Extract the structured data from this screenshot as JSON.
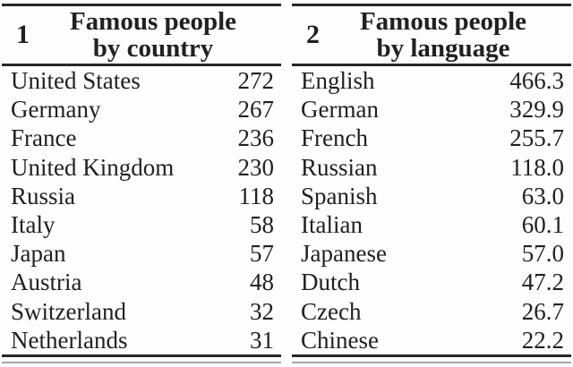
{
  "colors": {
    "text": "#231f20",
    "rule": "#2a2627",
    "faint_bottom_rule": "#a8a8a8",
    "background": "#fdfdfd"
  },
  "tables": [
    {
      "number": "1",
      "title_line1": "Famous people",
      "title_line2": "by country",
      "rows": [
        {
          "label": "United States",
          "value": "272"
        },
        {
          "label": "Germany",
          "value": "267"
        },
        {
          "label": "France",
          "value": "236"
        },
        {
          "label": "United Kingdom",
          "value": "230"
        },
        {
          "label": "Russia",
          "value": "118"
        },
        {
          "label": "Italy",
          "value": "58"
        },
        {
          "label": "Japan",
          "value": "57"
        },
        {
          "label": "Austria",
          "value": "48"
        },
        {
          "label": "Switzerland",
          "value": "32"
        },
        {
          "label": "Netherlands",
          "value": "31"
        }
      ]
    },
    {
      "number": "2",
      "title_line1": "Famous people",
      "title_line2": "by language",
      "rows": [
        {
          "label": "English",
          "value": "466.3"
        },
        {
          "label": "German",
          "value": "329.9"
        },
        {
          "label": "French",
          "value": "255.7"
        },
        {
          "label": "Russian",
          "value": "118.0"
        },
        {
          "label": "Spanish",
          "value": "63.0"
        },
        {
          "label": "Italian",
          "value": "60.1"
        },
        {
          "label": "Japanese",
          "value": "57.0"
        },
        {
          "label": "Dutch",
          "value": "47.2"
        },
        {
          "label": "Czech",
          "value": "26.7"
        },
        {
          "label": "Chinese",
          "value": "22.2"
        }
      ]
    }
  ]
}
